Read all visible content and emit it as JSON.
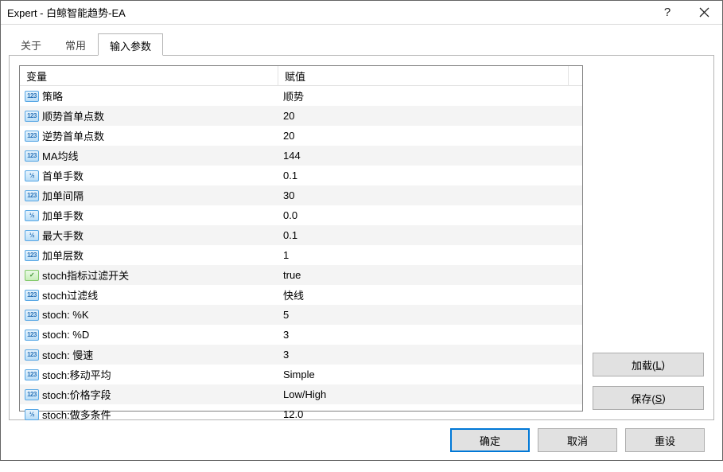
{
  "window": {
    "title": "Expert - 白鲸智能趋势-EA",
    "help_glyph": "?",
    "close_glyph": "×"
  },
  "tabs": [
    {
      "id": "about",
      "label": "关于",
      "active": false
    },
    {
      "id": "common",
      "label": "常用",
      "active": false
    },
    {
      "id": "inputs",
      "label": "输入参数",
      "active": true
    }
  ],
  "listview": {
    "header": {
      "variable": "变量",
      "value": "赋值"
    },
    "rows": [
      {
        "icon": "123",
        "name": "策略",
        "value": "顺势"
      },
      {
        "icon": "123",
        "name": "顺势首单点数",
        "value": "20"
      },
      {
        "icon": "123",
        "name": "逆势首单点数",
        "value": "20"
      },
      {
        "icon": "123",
        "name": "MA均线",
        "value": "144"
      },
      {
        "icon": "v12",
        "name": "首单手数",
        "value": "0.1"
      },
      {
        "icon": "123",
        "name": "加单间隔",
        "value": "30"
      },
      {
        "icon": "v12",
        "name": "加单手数",
        "value": "0.0"
      },
      {
        "icon": "v12",
        "name": "最大手数",
        "value": "0.1"
      },
      {
        "icon": "123",
        "name": "加单层数",
        "value": "1"
      },
      {
        "icon": "bool",
        "name": "stoch指标过滤开关",
        "value": "true"
      },
      {
        "icon": "123",
        "name": "stoch过滤线",
        "value": "快线"
      },
      {
        "icon": "123",
        "name": "stoch: %K",
        "value": "5"
      },
      {
        "icon": "123",
        "name": "stoch: %D",
        "value": "3"
      },
      {
        "icon": "123",
        "name": "stoch: 慢速",
        "value": "3"
      },
      {
        "icon": "123",
        "name": "stoch:移动平均",
        "value": "Simple"
      },
      {
        "icon": "123",
        "name": "stoch:价格字段",
        "value": "Low/High"
      },
      {
        "icon": "v12",
        "name": "stoch:做多条件",
        "value": "12.0"
      }
    ]
  },
  "icon_text": {
    "123": "123",
    "v12": "½",
    "bool": "✓"
  },
  "side_buttons": {
    "load": "加载(<u>L</u>)",
    "save": "保存(<u>S</u>)"
  },
  "footer_buttons": {
    "ok": "确定",
    "cancel": "取消",
    "reset": "重设"
  }
}
